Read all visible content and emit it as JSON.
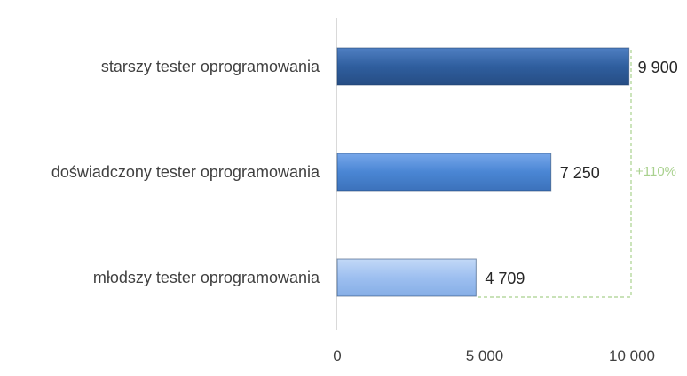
{
  "chart_data": {
    "type": "bar",
    "orientation": "horizontal",
    "categories": [
      "starszy tester oprogramowania",
      "doświadczony tester oprogramowania",
      "młodszy tester oprogramowania"
    ],
    "values": [
      9900,
      7250,
      4709
    ],
    "value_labels": [
      "9 900",
      "7 250",
      "4 709"
    ],
    "bar_colors": [
      "#2f5e9e",
      "#4a86d4",
      "#9dbff0"
    ],
    "xlim": [
      0,
      10000
    ],
    "xticks": [
      0,
      5000,
      10000
    ],
    "xtick_labels": [
      "0",
      "5 000",
      "10 000"
    ],
    "grid": false,
    "annotation": {
      "text": "+110%",
      "color": "#a9d18e"
    }
  }
}
